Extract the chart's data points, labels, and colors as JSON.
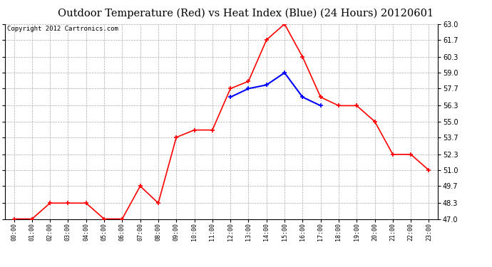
{
  "title": "Outdoor Temperature (Red) vs Heat Index (Blue) (24 Hours) 20120601",
  "copyright": "Copyright 2012 Cartronics.com",
  "x_labels": [
    "00:00",
    "01:00",
    "02:00",
    "03:00",
    "04:00",
    "05:00",
    "06:00",
    "07:00",
    "08:00",
    "09:00",
    "10:00",
    "11:00",
    "12:00",
    "13:00",
    "14:00",
    "15:00",
    "16:00",
    "17:00",
    "18:00",
    "19:00",
    "20:00",
    "21:00",
    "22:00",
    "23:00"
  ],
  "red_temps": [
    47.0,
    47.0,
    48.3,
    48.3,
    48.3,
    47.0,
    47.0,
    49.7,
    48.3,
    53.7,
    54.3,
    54.3,
    57.7,
    58.3,
    61.7,
    63.0,
    60.3,
    57.0,
    56.3,
    56.3,
    55.0,
    52.3,
    52.3,
    51.0
  ],
  "blue_temps_x": [
    12,
    13,
    14,
    15,
    16,
    17
  ],
  "blue_temps": [
    57.0,
    57.7,
    58.0,
    59.0,
    57.0,
    56.3
  ],
  "ylim_min": 47.0,
  "ylim_max": 63.0,
  "yticks": [
    47.0,
    48.3,
    49.7,
    51.0,
    52.3,
    53.7,
    55.0,
    56.3,
    57.7,
    59.0,
    60.3,
    61.7,
    63.0
  ],
  "red_color": "#ff0000",
  "blue_color": "#0000ff",
  "grid_color": "#aaaaaa",
  "bg_color": "#ffffff",
  "title_fontsize": 10.5,
  "copyright_fontsize": 6.5
}
